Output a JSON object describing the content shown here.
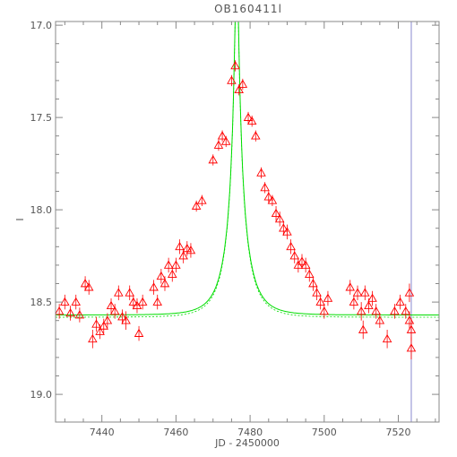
{
  "chart_data": {
    "type": "scatter",
    "title": "OB160411l",
    "xlabel": "JD - 2450000",
    "ylabel": "I",
    "xlim": [
      7427.5,
      7531
    ],
    "ylim": [
      19.15,
      16.98
    ],
    "y_inverted": true,
    "x_ticks": [
      7440,
      7460,
      7480,
      7500,
      7520
    ],
    "x_tick_labels": [
      "7440",
      "7460",
      "7480",
      "7500",
      "7520"
    ],
    "y_ticks": [
      17.0,
      17.5,
      18.0,
      18.5,
      19.0
    ],
    "y_tick_labels": [
      "17.0",
      "17.5",
      "18.0",
      "18.5",
      "19.0"
    ],
    "marker": "triangle",
    "colors": {
      "points": "#ff0000",
      "model": "#00dd00",
      "vline": "#8a8ad0",
      "frame": "#888888"
    },
    "vline_x": 7523.5,
    "series": [
      {
        "values": [
          [
            7428.5,
            18.55,
            0.04
          ],
          [
            7430.0,
            18.5,
            0.04
          ],
          [
            7431.5,
            18.56,
            0.04
          ],
          [
            7433.0,
            18.5,
            0.04
          ],
          [
            7434.0,
            18.57,
            0.04
          ],
          [
            7435.5,
            18.4,
            0.04
          ],
          [
            7436.5,
            18.42,
            0.04
          ],
          [
            7437.5,
            18.7,
            0.05
          ],
          [
            7438.5,
            18.62,
            0.04
          ],
          [
            7439.5,
            18.66,
            0.04
          ],
          [
            7440.5,
            18.63,
            0.04
          ],
          [
            7441.5,
            18.6,
            0.04
          ],
          [
            7442.5,
            18.52,
            0.04
          ],
          [
            7443.5,
            18.55,
            0.04
          ],
          [
            7444.5,
            18.45,
            0.04
          ],
          [
            7445.5,
            18.58,
            0.04
          ],
          [
            7446.5,
            18.6,
            0.05
          ],
          [
            7447.5,
            18.45,
            0.04
          ],
          [
            7448.5,
            18.5,
            0.04
          ],
          [
            7449.5,
            18.52,
            0.04
          ],
          [
            7450.0,
            18.67,
            0.04
          ],
          [
            7451.0,
            18.5,
            0.04
          ],
          [
            7454.0,
            18.42,
            0.04
          ],
          [
            7455.0,
            18.5,
            0.04
          ],
          [
            7456.0,
            18.36,
            0.04
          ],
          [
            7457.0,
            18.4,
            0.04
          ],
          [
            7458.0,
            18.3,
            0.04
          ],
          [
            7459.0,
            18.35,
            0.04
          ],
          [
            7460.0,
            18.3,
            0.04
          ],
          [
            7461.0,
            18.2,
            0.04
          ],
          [
            7462.0,
            18.25,
            0.04
          ],
          [
            7463.0,
            18.21,
            0.04
          ],
          [
            7464.0,
            18.22,
            0.04
          ],
          [
            7465.5,
            17.98,
            0.03
          ],
          [
            7467.0,
            17.95,
            0.03
          ],
          [
            7470.0,
            17.73,
            0.03
          ],
          [
            7471.5,
            17.65,
            0.03
          ],
          [
            7472.5,
            17.6,
            0.03
          ],
          [
            7473.5,
            17.63,
            0.03
          ],
          [
            7475.0,
            17.3,
            0.03
          ],
          [
            7476.0,
            17.22,
            0.03
          ],
          [
            7477.0,
            17.35,
            0.03
          ],
          [
            7478.0,
            17.32,
            0.03
          ],
          [
            7479.5,
            17.5,
            0.03
          ],
          [
            7480.5,
            17.52,
            0.03
          ],
          [
            7481.5,
            17.6,
            0.03
          ],
          [
            7483.0,
            17.8,
            0.03
          ],
          [
            7484.0,
            17.88,
            0.03
          ],
          [
            7485.0,
            17.93,
            0.03
          ],
          [
            7486.0,
            17.95,
            0.03
          ],
          [
            7487.0,
            18.02,
            0.04
          ],
          [
            7488.0,
            18.05,
            0.04
          ],
          [
            7489.0,
            18.1,
            0.04
          ],
          [
            7490.0,
            18.12,
            0.04
          ],
          [
            7491.0,
            18.2,
            0.04
          ],
          [
            7492.0,
            18.25,
            0.04
          ],
          [
            7493.0,
            18.3,
            0.04
          ],
          [
            7494.0,
            18.28,
            0.04
          ],
          [
            7495.0,
            18.3,
            0.04
          ],
          [
            7496.0,
            18.35,
            0.04
          ],
          [
            7497.0,
            18.4,
            0.04
          ],
          [
            7498.0,
            18.45,
            0.04
          ],
          [
            7499.0,
            18.5,
            0.04
          ],
          [
            7500.0,
            18.55,
            0.04
          ],
          [
            7501.0,
            18.48,
            0.04
          ],
          [
            7507.0,
            18.42,
            0.04
          ],
          [
            7508.0,
            18.5,
            0.04
          ],
          [
            7509.0,
            18.45,
            0.04
          ],
          [
            7510.0,
            18.55,
            0.05
          ],
          [
            7510.5,
            18.65,
            0.05
          ],
          [
            7511.0,
            18.45,
            0.04
          ],
          [
            7512.0,
            18.52,
            0.04
          ],
          [
            7513.0,
            18.48,
            0.04
          ],
          [
            7514.0,
            18.55,
            0.04
          ],
          [
            7515.0,
            18.6,
            0.04
          ],
          [
            7517.0,
            18.7,
            0.05
          ],
          [
            7519.0,
            18.55,
            0.04
          ],
          [
            7520.5,
            18.5,
            0.04
          ],
          [
            7522.0,
            18.55,
            0.04
          ],
          [
            7523.0,
            18.6,
            0.05
          ],
          [
            7523.5,
            18.65,
            0.06
          ],
          [
            7523.5,
            18.75,
            0.06
          ],
          [
            7523.0,
            18.45,
            0.05
          ]
        ]
      }
    ],
    "model_curve": {
      "t0": 7476.4,
      "tE": 6.0,
      "u0": 0.075,
      "I_base": 18.57,
      "blend_fraction": 0.39
    }
  }
}
